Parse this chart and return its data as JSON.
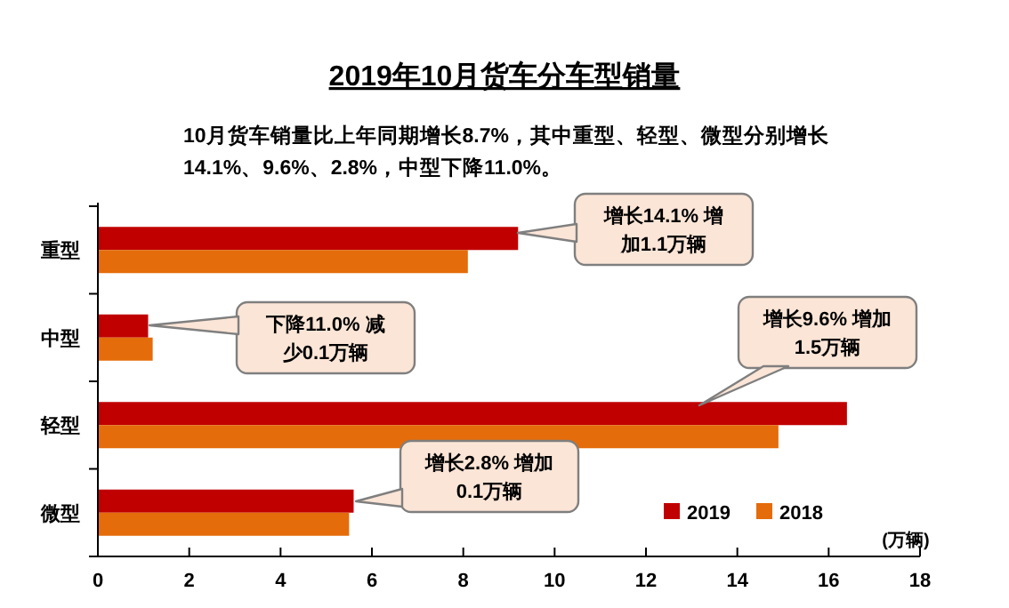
{
  "chart_data": {
    "type": "bar",
    "orientation": "horizontal",
    "title": "2019年10月货车分车型销量",
    "subtitle": "10月货车销量比上年同期增长8.7%，其中重型、轻型、微型分别增长\n14.1%、9.6%、2.8%，中型下降11.0%。",
    "xlabel": "(万辆)",
    "categories": [
      "重型",
      "中型",
      "轻型",
      "微型"
    ],
    "series": [
      {
        "name": "2019",
        "color": "#c00000",
        "values": [
          9.2,
          1.1,
          16.4,
          5.6
        ]
      },
      {
        "name": "2018",
        "color": "#e46c0a",
        "values": [
          8.1,
          1.2,
          14.9,
          5.5
        ]
      }
    ],
    "xlim": [
      0,
      18
    ],
    "xticks": [
      0,
      2,
      4,
      6,
      8,
      10,
      12,
      14,
      16,
      18
    ],
    "grid": false,
    "legend": "bottom right",
    "annotations": [
      "增长14.1% 增加1.1万辆",
      "下降11.0% 减少0.1万辆",
      "增长9.6% 增加1.5万辆",
      "增长2.8% 增加0.1万辆"
    ]
  }
}
